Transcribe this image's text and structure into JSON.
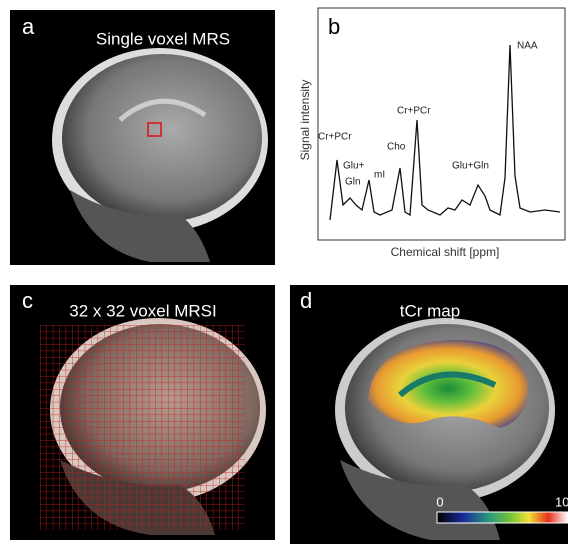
{
  "panels": {
    "a": {
      "label": "a",
      "title": "Single voxel MRS"
    },
    "b": {
      "label": "b",
      "y_axis_label": "Signal intensity",
      "x_axis_label": "Chemical shift [ppm]",
      "peak_labels": [
        "Cr+PCr",
        "Glu+",
        "Gln",
        "mI",
        "Cho",
        "Cr+PCr",
        "Glu+Gln",
        "NAA"
      ]
    },
    "c": {
      "label": "c",
      "title": "32 x 32 voxel MRSI"
    },
    "d": {
      "label": "d",
      "title": "tCr map",
      "colorbar_min": "0",
      "colorbar_max": "10"
    }
  }
}
